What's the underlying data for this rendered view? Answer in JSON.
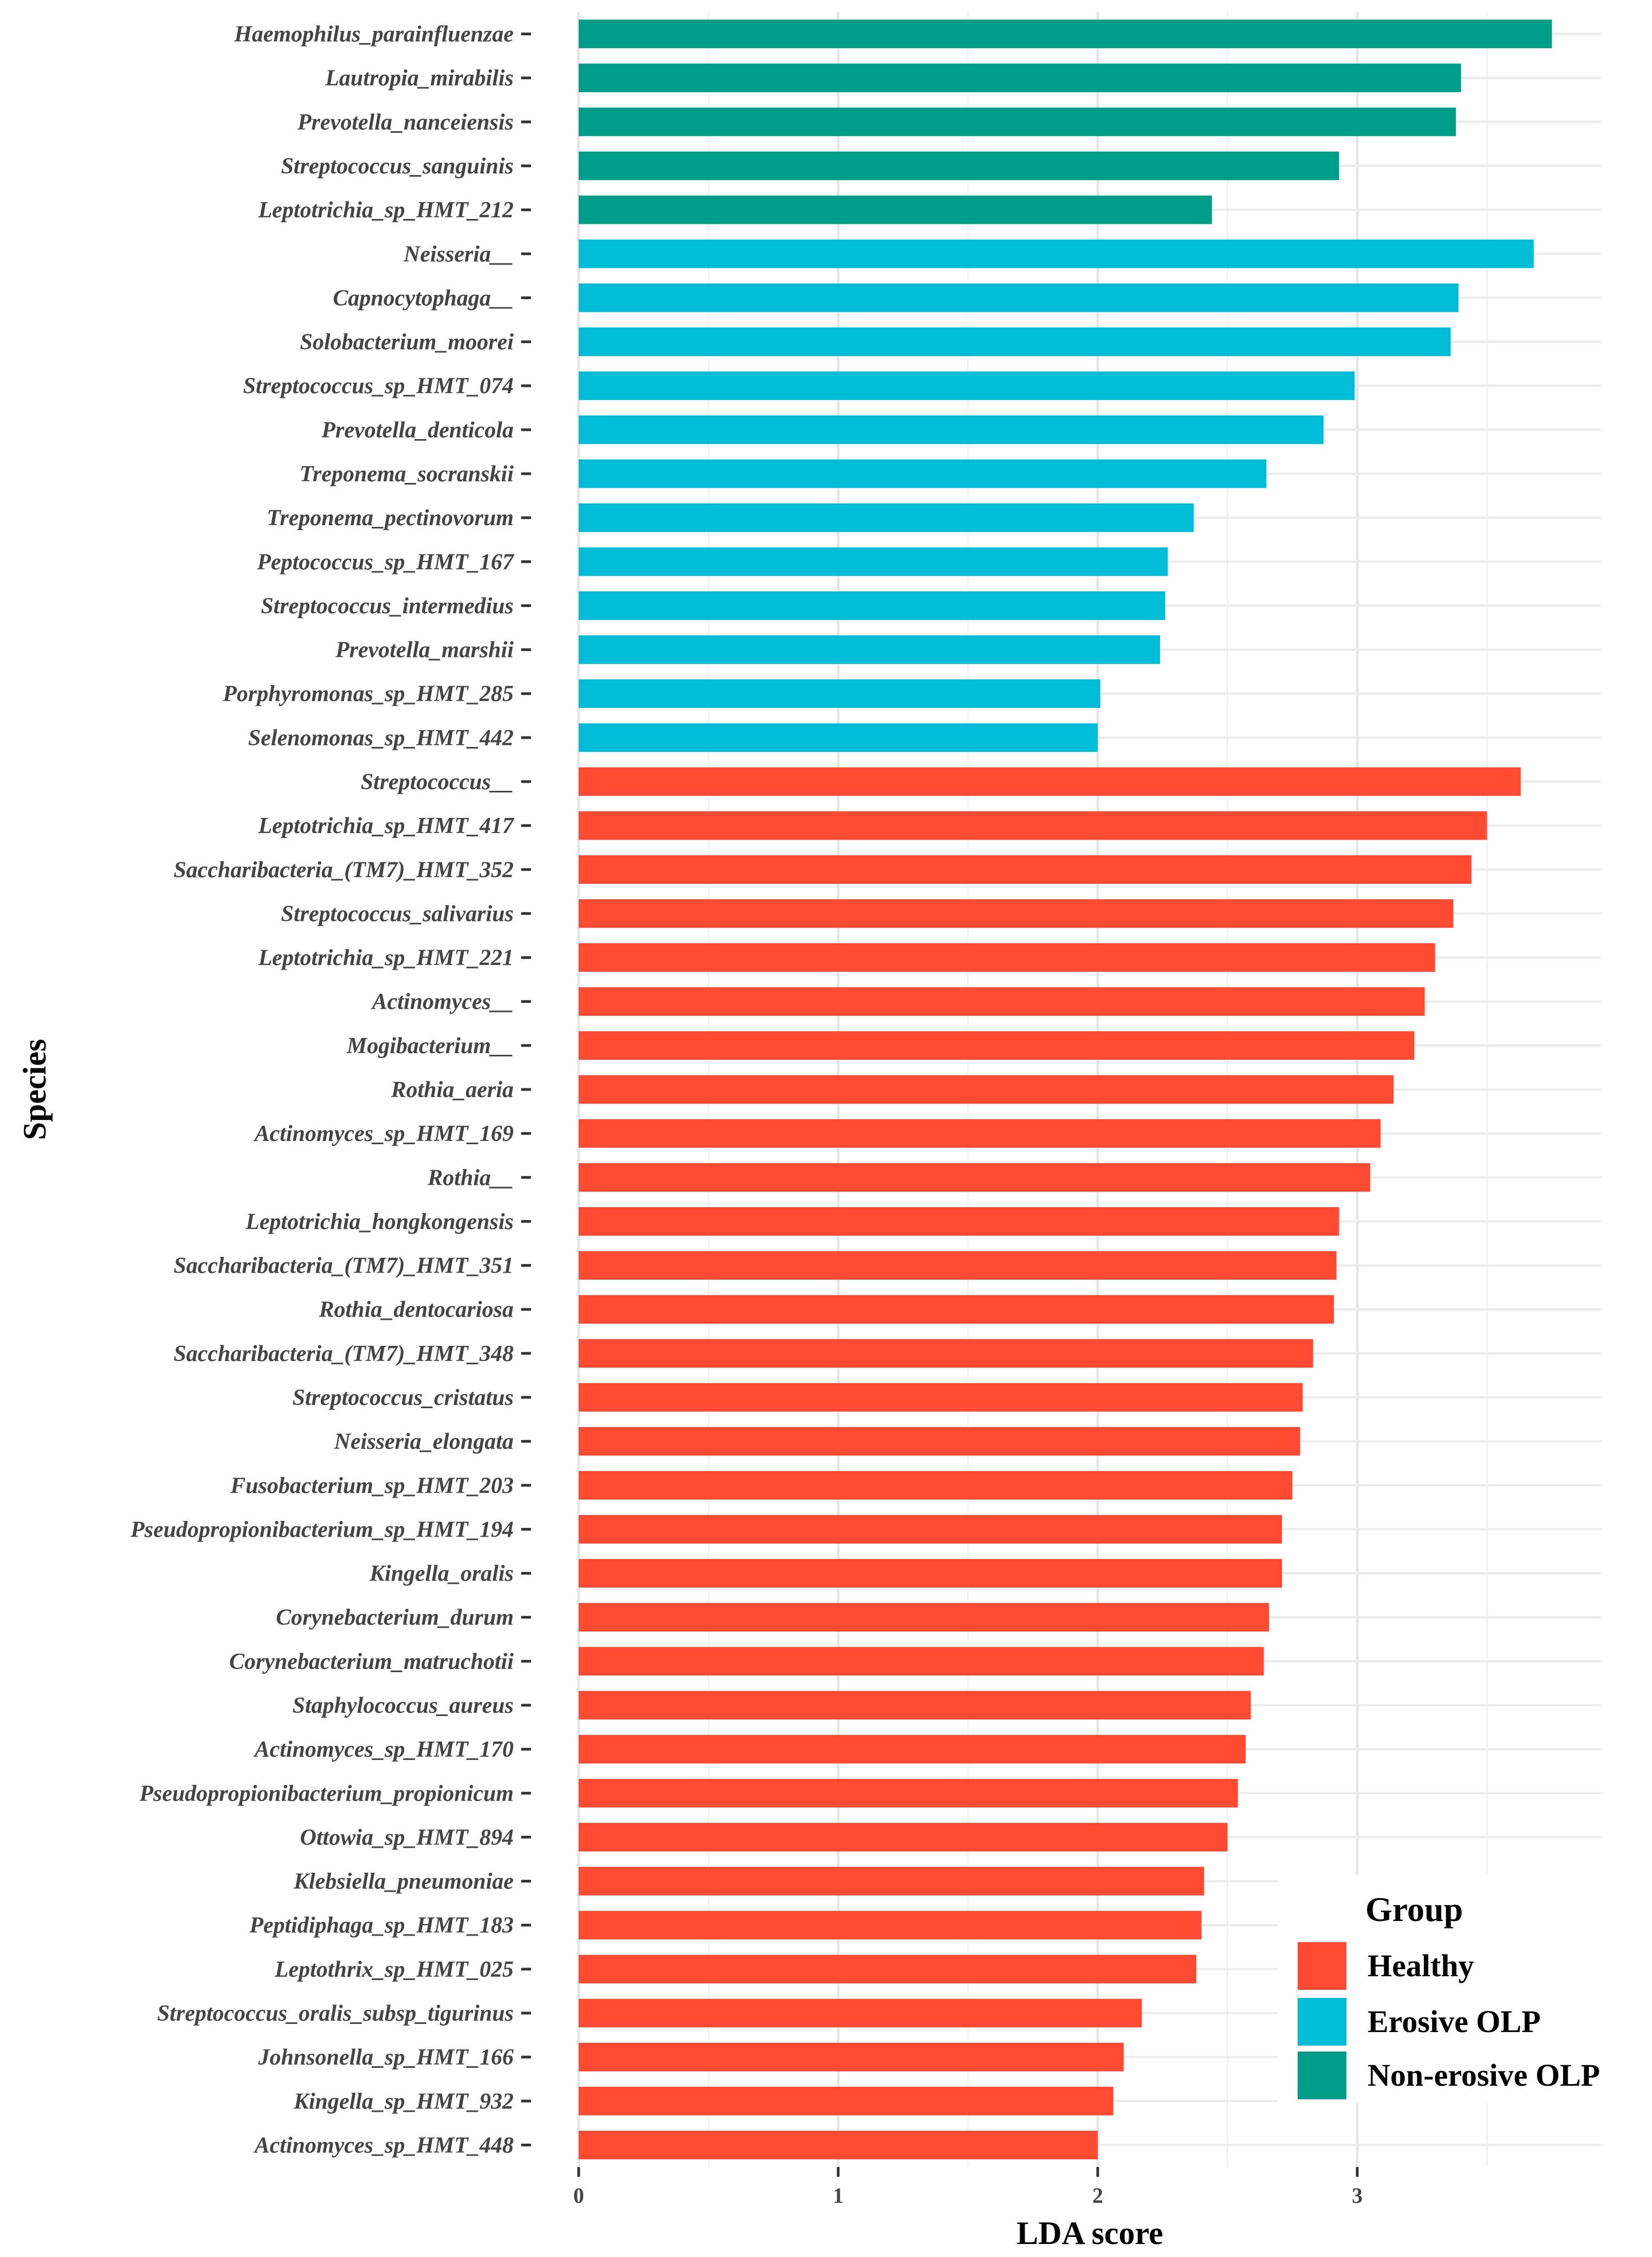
{
  "chart_data": {
    "type": "bar",
    "orientation": "horizontal",
    "xlabel": "LDA score",
    "ylabel": "Species",
    "xlim": [
      0,
      4
    ],
    "xticks": [
      0,
      1,
      2,
      3
    ],
    "grid": true,
    "legend": {
      "title": "Group",
      "position": "bottom-right",
      "entries": [
        {
          "label": "Healthy",
          "color": "#FF4A33"
        },
        {
          "label": "Erosive OLP",
          "color": "#00BCD6"
        },
        {
          "label": "Non-erosive OLP",
          "color": "#009E89"
        }
      ]
    },
    "bars": [
      {
        "category": "Haemophilus_parainfluenzae",
        "value": 3.75,
        "group": "Non-erosive OLP"
      },
      {
        "category": "Lautropia_mirabilis",
        "value": 3.4,
        "group": "Non-erosive OLP"
      },
      {
        "category": "Prevotella_nanceiensis",
        "value": 3.38,
        "group": "Non-erosive OLP"
      },
      {
        "category": "Streptococcus_sanguinis",
        "value": 2.93,
        "group": "Non-erosive OLP"
      },
      {
        "category": "Leptotrichia_sp_HMT_212",
        "value": 2.44,
        "group": "Non-erosive OLP"
      },
      {
        "category": "Neisseria__",
        "value": 3.68,
        "group": "Erosive OLP"
      },
      {
        "category": "Capnocytophaga__",
        "value": 3.39,
        "group": "Erosive OLP"
      },
      {
        "category": "Solobacterium_moorei",
        "value": 3.36,
        "group": "Erosive OLP"
      },
      {
        "category": "Streptococcus_sp_HMT_074",
        "value": 2.99,
        "group": "Erosive OLP"
      },
      {
        "category": "Prevotella_denticola",
        "value": 2.87,
        "group": "Erosive OLP"
      },
      {
        "category": "Treponema_socranskii",
        "value": 2.65,
        "group": "Erosive OLP"
      },
      {
        "category": "Treponema_pectinovorum",
        "value": 2.37,
        "group": "Erosive OLP"
      },
      {
        "category": "Peptococcus_sp_HMT_167",
        "value": 2.27,
        "group": "Erosive OLP"
      },
      {
        "category": "Streptococcus_intermedius",
        "value": 2.26,
        "group": "Erosive OLP"
      },
      {
        "category": "Prevotella_marshii",
        "value": 2.24,
        "group": "Erosive OLP"
      },
      {
        "category": "Porphyromonas_sp_HMT_285",
        "value": 2.01,
        "group": "Erosive OLP"
      },
      {
        "category": "Selenomonas_sp_HMT_442",
        "value": 2.0,
        "group": "Erosive OLP"
      },
      {
        "category": "Streptococcus__",
        "value": 3.63,
        "group": "Healthy"
      },
      {
        "category": "Leptotrichia_sp_HMT_417",
        "value": 3.5,
        "group": "Healthy"
      },
      {
        "category": "Saccharibacteria_(TM7)_HMT_352",
        "value": 3.44,
        "group": "Healthy"
      },
      {
        "category": "Streptococcus_salivarius",
        "value": 3.37,
        "group": "Healthy"
      },
      {
        "category": "Leptotrichia_sp_HMT_221",
        "value": 3.3,
        "group": "Healthy"
      },
      {
        "category": "Actinomyces__",
        "value": 3.26,
        "group": "Healthy"
      },
      {
        "category": "Mogibacterium__",
        "value": 3.22,
        "group": "Healthy"
      },
      {
        "category": "Rothia_aeria",
        "value": 3.14,
        "group": "Healthy"
      },
      {
        "category": "Actinomyces_sp_HMT_169",
        "value": 3.09,
        "group": "Healthy"
      },
      {
        "category": "Rothia__",
        "value": 3.05,
        "group": "Healthy"
      },
      {
        "category": "Leptotrichia_hongkongensis",
        "value": 2.93,
        "group": "Healthy"
      },
      {
        "category": "Saccharibacteria_(TM7)_HMT_351",
        "value": 2.92,
        "group": "Healthy"
      },
      {
        "category": "Rothia_dentocariosa",
        "value": 2.91,
        "group": "Healthy"
      },
      {
        "category": "Saccharibacteria_(TM7)_HMT_348",
        "value": 2.83,
        "group": "Healthy"
      },
      {
        "category": "Streptococcus_cristatus",
        "value": 2.79,
        "group": "Healthy"
      },
      {
        "category": "Neisseria_elongata",
        "value": 2.78,
        "group": "Healthy"
      },
      {
        "category": "Fusobacterium_sp_HMT_203",
        "value": 2.75,
        "group": "Healthy"
      },
      {
        "category": "Pseudopropionibacterium_sp_HMT_194",
        "value": 2.71,
        "group": "Healthy"
      },
      {
        "category": "Kingella_oralis",
        "value": 2.71,
        "group": "Healthy"
      },
      {
        "category": "Corynebacterium_durum",
        "value": 2.66,
        "group": "Healthy"
      },
      {
        "category": "Corynebacterium_matruchotii",
        "value": 2.64,
        "group": "Healthy"
      },
      {
        "category": "Staphylococcus_aureus",
        "value": 2.59,
        "group": "Healthy"
      },
      {
        "category": "Actinomyces_sp_HMT_170",
        "value": 2.57,
        "group": "Healthy"
      },
      {
        "category": "Pseudopropionibacterium_propionicum",
        "value": 2.54,
        "group": "Healthy"
      },
      {
        "category": "Ottowia_sp_HMT_894",
        "value": 2.5,
        "group": "Healthy"
      },
      {
        "category": "Klebsiella_pneumoniae",
        "value": 2.41,
        "group": "Healthy"
      },
      {
        "category": "Peptidiphaga_sp_HMT_183",
        "value": 2.4,
        "group": "Healthy"
      },
      {
        "category": "Leptothrix_sp_HMT_025",
        "value": 2.38,
        "group": "Healthy"
      },
      {
        "category": "Streptococcus_oralis_subsp_tigurinus",
        "value": 2.17,
        "group": "Healthy"
      },
      {
        "category": "Johnsonella_sp_HMT_166",
        "value": 2.1,
        "group": "Healthy"
      },
      {
        "category": "Kingella_sp_HMT_932",
        "value": 2.06,
        "group": "Healthy"
      },
      {
        "category": "Actinomyces_sp_HMT_448",
        "value": 2.0,
        "group": "Healthy"
      }
    ]
  }
}
